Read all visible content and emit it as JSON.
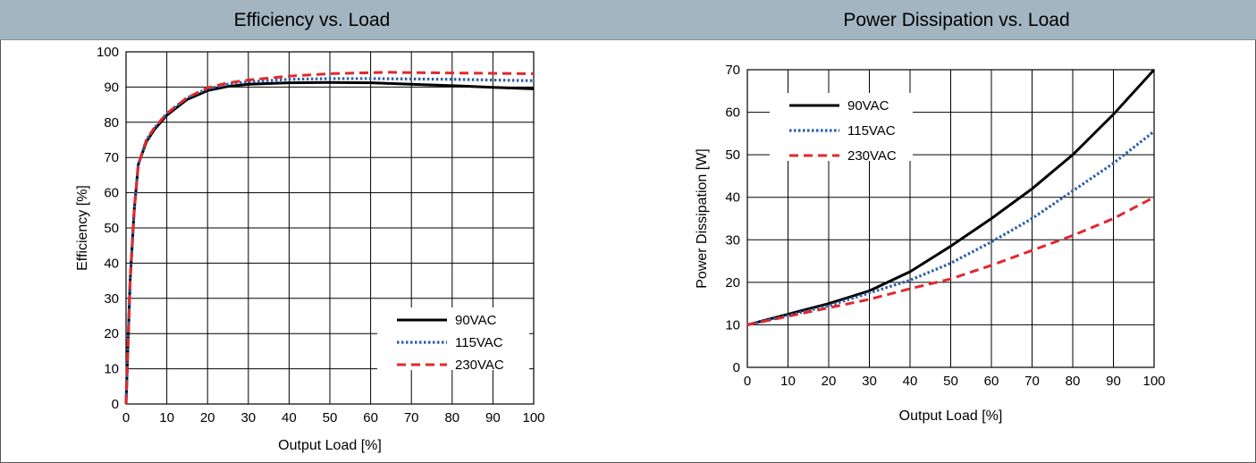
{
  "chart_data": [
    {
      "type": "line",
      "title": "Efficiency vs. Load",
      "xlabel": "Output Load [%]",
      "ylabel": "Efficiency [%]",
      "xlim": [
        0,
        100
      ],
      "ylim": [
        0,
        100
      ],
      "x_ticks": [
        "0",
        "10",
        "20",
        "30",
        "40",
        "50",
        "60",
        "70",
        "80",
        "90",
        "100"
      ],
      "y_ticks": [
        "0",
        "10",
        "20",
        "30",
        "40",
        "50",
        "60",
        "70",
        "80",
        "90",
        "100"
      ],
      "grid": true,
      "legend_position": "bottom-right",
      "series": [
        {
          "name": "90VAC",
          "color": "#000000",
          "style": "solid",
          "x": [
            0,
            1,
            2,
            3,
            5,
            7,
            10,
            15,
            20,
            25,
            30,
            40,
            50,
            60,
            70,
            80,
            90,
            100
          ],
          "y": [
            0,
            35,
            55,
            68,
            74.5,
            78,
            82,
            86.5,
            89,
            90.2,
            90.8,
            91.2,
            91.3,
            91.2,
            90.8,
            90.4,
            89.9,
            89.5
          ]
        },
        {
          "name": "115VAC",
          "color": "#2b5ea8",
          "style": "dotted",
          "x": [
            0,
            1,
            2,
            3,
            5,
            7,
            10,
            15,
            20,
            25,
            30,
            40,
            50,
            60,
            70,
            80,
            90,
            100
          ],
          "y": [
            0,
            35,
            55,
            68,
            75,
            78.5,
            82.5,
            87,
            89.5,
            90.8,
            91.5,
            92.2,
            92.4,
            92.4,
            92.3,
            92.2,
            92.0,
            91.8
          ]
        },
        {
          "name": "230VAC",
          "color": "#e0292e",
          "style": "dashed",
          "x": [
            0,
            1,
            2,
            3,
            5,
            7,
            10,
            15,
            20,
            25,
            30,
            40,
            50,
            60,
            65,
            70,
            80,
            90,
            100
          ],
          "y": [
            0,
            35,
            55,
            68,
            75,
            78.5,
            82.5,
            87,
            89.8,
            91.2,
            92,
            93.1,
            93.8,
            94.1,
            94.2,
            94.1,
            94.0,
            93.9,
            93.8
          ]
        }
      ]
    },
    {
      "type": "line",
      "title": "Power Dissipation vs. Load",
      "xlabel": "Output Load [%]",
      "ylabel": "Power Dissipation [W]",
      "xlim": [
        0,
        100
      ],
      "ylim": [
        0,
        70
      ],
      "x_ticks": [
        "0",
        "10",
        "20",
        "30",
        "40",
        "50",
        "60",
        "70",
        "80",
        "90",
        "100"
      ],
      "y_ticks": [
        "0",
        "10",
        "20",
        "30",
        "40",
        "50",
        "60",
        "70"
      ],
      "grid": true,
      "legend_position": "top-left",
      "series": [
        {
          "name": "90VAC",
          "color": "#000000",
          "style": "solid",
          "x": [
            0,
            10,
            20,
            30,
            40,
            50,
            60,
            70,
            80,
            90,
            100
          ],
          "y": [
            10,
            12.5,
            15,
            18,
            22.5,
            28.5,
            35,
            42,
            50,
            59.5,
            70
          ]
        },
        {
          "name": "115VAC",
          "color": "#2b5ea8",
          "style": "dotted",
          "x": [
            0,
            10,
            20,
            30,
            40,
            50,
            60,
            70,
            80,
            90,
            100
          ],
          "y": [
            10,
            12.2,
            14.5,
            17.5,
            20.5,
            24.5,
            29.5,
            35,
            41.5,
            48,
            55.5
          ]
        },
        {
          "name": "230VAC",
          "color": "#e0292e",
          "style": "dashed",
          "x": [
            0,
            10,
            20,
            30,
            40,
            50,
            60,
            70,
            80,
            90,
            100
          ],
          "y": [
            10,
            12,
            14,
            16,
            18.5,
            20.8,
            24,
            27.5,
            31,
            35,
            40
          ]
        }
      ]
    }
  ]
}
